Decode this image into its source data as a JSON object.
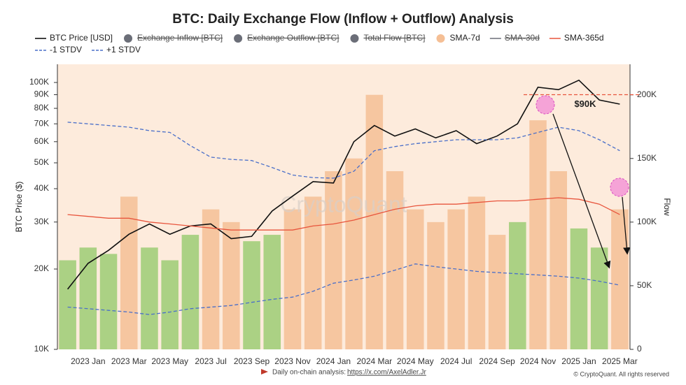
{
  "chart_data": {
    "type": "combo",
    "title": "BTC: Daily Exchange Flow (Inflow + Outflow) Analysis",
    "y_label": "BTC Price ($)",
    "y2_label": "Flow",
    "watermark": "CryptoQuant",
    "source": "Daily on-chain analysis:",
    "source_link": "https://x.com/AxelAdler.Jr",
    "copyright": "© CryptoQuant. All rights reserved",
    "categories": [
      null,
      "2023 Jan",
      null,
      "2023 Mar",
      null,
      "2023 May",
      null,
      "2023 Jul",
      null,
      "2023 Sep",
      null,
      "2023 Nov",
      null,
      "2024 Jan",
      null,
      "2024 Mar",
      null,
      "2024 May",
      null,
      "2024 Jul",
      null,
      "2024 Sep",
      null,
      "2024 Nov",
      null,
      "2025 Jan",
      null,
      "2025 Mar"
    ],
    "log_y": true,
    "ylim": [
      10000,
      117000
    ],
    "yticks": [
      {
        "value": 10000,
        "label": "10K"
      },
      {
        "value": 20000,
        "label": "20K"
      },
      {
        "value": 30000,
        "label": "30K"
      },
      {
        "value": 40000,
        "label": "40K"
      },
      {
        "value": 50000,
        "label": "50K"
      },
      {
        "value": 60000,
        "label": "60K"
      },
      {
        "value": 70000,
        "label": "70K"
      },
      {
        "value": 80000,
        "label": "80K"
      },
      {
        "value": 90000,
        "label": "90K"
      },
      {
        "value": 100000,
        "label": "100K"
      }
    ],
    "y2lim": [
      0,
      224000
    ],
    "y2ticks": [
      0,
      {
        "value": 50000,
        "label": "50K"
      },
      {
        "value": 100000,
        "label": "100K"
      },
      {
        "value": 150000,
        "label": "150K"
      },
      {
        "value": 200000,
        "label": "200K"
      }
    ],
    "series": [
      {
        "name": "BTC Price [USD]",
        "color": "#111111",
        "style": "line",
        "axis": "y",
        "values": [
          16800,
          21000,
          23500,
          27000,
          29500,
          27000,
          29000,
          29500,
          26000,
          26500,
          33000,
          37500,
          42500,
          42000,
          60000,
          69000,
          63000,
          67000,
          62000,
          66000,
          59000,
          63000,
          70000,
          96000,
          94000,
          102000,
          86000,
          83000
        ]
      },
      {
        "name": "Exchange Inflow [BTC]",
        "color": "#6b6e78",
        "style": "circle",
        "visible": false
      },
      {
        "name": "Exchange Outflow [BTC]",
        "color": "#6b6e78",
        "style": "circle",
        "visible": false
      },
      {
        "name": "Total Flow [BTC]",
        "color": "#6b6e78",
        "style": "circle",
        "visible": false
      },
      {
        "name": "SMA-7d",
        "color": "#f5bf95",
        "style": "bar",
        "axis": "y2",
        "values": [
          70000,
          80000,
          75000,
          120000,
          80000,
          70000,
          90000,
          110000,
          100000,
          85000,
          90000,
          110000,
          120000,
          140000,
          150000,
          200000,
          140000,
          110000,
          100000,
          110000,
          120000,
          90000,
          100000,
          180000,
          140000,
          95000,
          80000,
          110000
        ],
        "colors": [
          "#9ccc74",
          "#9ccc74",
          "#9ccc74",
          "#f5bf95",
          "#9ccc74",
          "#9ccc74",
          "#9ccc74",
          "#f5bf95",
          "#f5bf95",
          "#9ccc74",
          "#9ccc74",
          "#f5bf95",
          "#f5bf95",
          "#f5bf95",
          "#f5bf95",
          "#f5bf95",
          "#f5bf95",
          "#f5bf95",
          "#f5bf95",
          "#f5bf95",
          "#f5bf95",
          "#f5bf95",
          "#9ccc74",
          "#f5bf95",
          "#f5bf95",
          "#9ccc74",
          "#9ccc74",
          "#f5bf95"
        ]
      },
      {
        "name": "SMA-30d",
        "color": "#6b6e78",
        "style": "line",
        "visible": false
      },
      {
        "name": "SMA-365d",
        "color": "#e8553d",
        "style": "line",
        "axis": "y",
        "values": [
          32000,
          31500,
          31000,
          31000,
          30000,
          29500,
          29000,
          28500,
          28000,
          28000,
          28000,
          28000,
          29000,
          29500,
          30500,
          32000,
          33500,
          34500,
          35000,
          35000,
          35500,
          36000,
          36000,
          36500,
          37000,
          36500,
          35000,
          32000
        ]
      },
      {
        "name": "-1 STDV",
        "color": "#4a6fc9",
        "style": "dashed",
        "axis": "y",
        "values": [
          14400,
          14200,
          14000,
          13800,
          13500,
          13800,
          14200,
          14400,
          14600,
          15000,
          15400,
          15700,
          16500,
          17700,
          18200,
          18800,
          19800,
          20900,
          20400,
          20000,
          19600,
          19400,
          19200,
          19000,
          18800,
          18500,
          18000,
          17400
        ]
      },
      {
        "name": "+1 STDV",
        "color": "#4a6fc9",
        "style": "dashed",
        "axis": "y",
        "values": [
          71000,
          70000,
          69000,
          68000,
          66000,
          65000,
          58000,
          52500,
          51500,
          51000,
          48000,
          45000,
          44000,
          43800,
          46500,
          55500,
          57500,
          59000,
          60000,
          61000,
          61000,
          61000,
          62000,
          65000,
          68000,
          66000,
          61000,
          55500
        ]
      }
    ],
    "annotations": [
      {
        "text": "$90K",
        "value": 90000
      }
    ]
  }
}
